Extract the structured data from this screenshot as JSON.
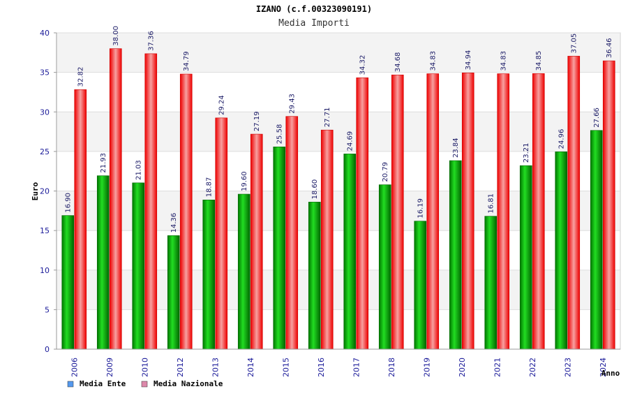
{
  "chart_data": {
    "type": "bar",
    "title": "IZANO (c.f.00323090191)",
    "subtitle": "Media Importi",
    "xlabel": "Anno",
    "ylabel": "Euro",
    "ylim": [
      0,
      40
    ],
    "yticks": [
      0,
      5,
      10,
      15,
      20,
      25,
      30,
      35,
      40
    ],
    "grid": true,
    "legend_position": "bottom-left",
    "categories": [
      "2006",
      "2009",
      "2010",
      "2012",
      "2013",
      "2014",
      "2015",
      "2016",
      "2017",
      "2018",
      "2019",
      "2020",
      "2021",
      "2022",
      "2023",
      "2024"
    ],
    "series": [
      {
        "name": "Media Ente",
        "color": "#00aa00",
        "legend_color": "#5599ee",
        "values": [
          16.9,
          21.93,
          21.03,
          14.36,
          18.87,
          19.6,
          25.58,
          18.6,
          24.69,
          20.79,
          16.19,
          23.84,
          16.81,
          23.21,
          24.96,
          27.66
        ],
        "labels": [
          "16.90",
          "21.93",
          "21.03",
          "14.36",
          "18.87",
          "19.60",
          "25.58",
          "18.60",
          "24.69",
          "20.79",
          "16.19",
          "23.84",
          "16.81",
          "23.21",
          "24.96",
          "27.66"
        ]
      },
      {
        "name": "Media Nazionale",
        "color": "#ee1111",
        "legend_color": "#dd88aa",
        "values": [
          32.82,
          38.0,
          37.36,
          34.79,
          29.24,
          27.19,
          29.43,
          27.71,
          34.32,
          34.68,
          34.83,
          34.94,
          34.83,
          34.85,
          37.05,
          36.46
        ],
        "labels": [
          "32.82",
          "38.00",
          "37.36",
          "34.79",
          "29.24",
          "27.19",
          "29.43",
          "27.71",
          "34.32",
          "34.68",
          "34.83",
          "34.94",
          "34.83",
          "34.85",
          "37.05",
          "36.46"
        ]
      }
    ]
  }
}
